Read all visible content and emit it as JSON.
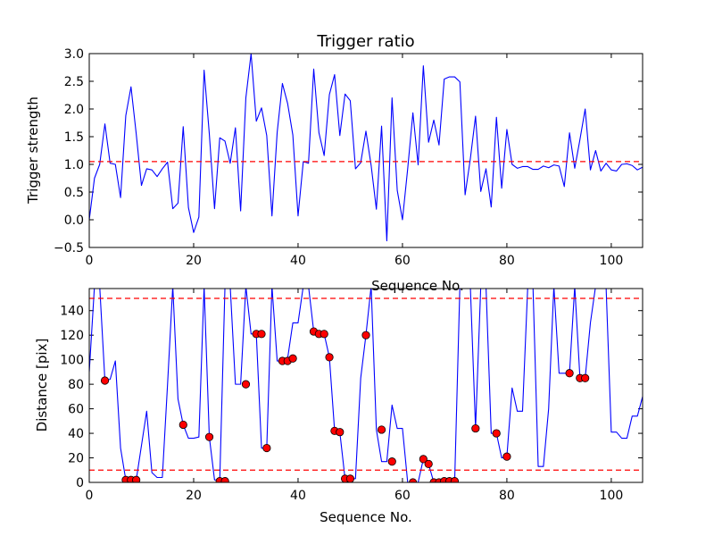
{
  "chart_data": [
    {
      "type": "line",
      "title": "Trigger ratio",
      "xlabel": "Sequence No.",
      "ylabel": "Trigger strength",
      "xlim": [
        0,
        106
      ],
      "ylim": [
        -0.5,
        3.0
      ],
      "xticks": [
        "0",
        "20",
        "40",
        "60",
        "80",
        "100"
      ],
      "yticks": [
        "−0.5",
        "0.0",
        "0.5",
        "1.0",
        "1.5",
        "2.0",
        "2.5",
        "3.0"
      ],
      "grid": false,
      "series": [
        {
          "color": "#0000ff",
          "x": [
            0,
            1,
            2,
            3,
            4,
            5,
            6,
            7,
            8,
            9,
            10,
            11,
            12,
            13,
            14,
            15,
            16,
            17,
            18,
            19,
            20,
            21,
            22,
            23,
            24,
            25,
            26,
            27,
            28,
            29,
            30,
            31,
            32,
            33,
            34,
            35,
            36,
            37,
            38,
            39,
            40,
            41,
            42,
            43,
            44,
            45,
            46,
            47,
            48,
            49,
            50,
            51,
            52,
            53,
            54,
            55,
            56,
            57,
            58,
            59,
            60,
            61,
            62,
            63,
            64,
            65,
            66,
            67,
            68,
            69,
            70,
            71,
            72,
            73,
            74,
            75,
            76,
            77,
            78,
            79,
            80,
            81,
            82,
            83,
            84,
            85,
            86,
            87,
            88,
            89,
            90,
            91,
            92,
            93,
            94,
            95,
            96,
            97,
            98,
            99,
            100,
            101,
            102,
            103,
            104,
            105,
            106
          ],
          "y": [
            0.0,
            0.75,
            1.0,
            1.73,
            1.02,
            1.0,
            0.4,
            1.88,
            2.4,
            1.55,
            0.62,
            0.92,
            0.9,
            0.78,
            0.92,
            1.04,
            0.2,
            0.3,
            1.68,
            0.22,
            -0.23,
            0.05,
            2.7,
            1.55,
            0.2,
            1.48,
            1.42,
            1.02,
            1.66,
            0.16,
            2.2,
            3.0,
            1.78,
            2.02,
            1.52,
            0.07,
            1.58,
            2.46,
            2.1,
            1.53,
            0.07,
            1.05,
            1.02,
            2.72,
            1.57,
            1.16,
            2.26,
            2.62,
            1.52,
            2.27,
            2.15,
            0.92,
            1.03,
            1.6,
            0.98,
            0.19,
            1.69,
            -0.38,
            2.2,
            0.53,
            0.0,
            0.92,
            1.93,
            0.99,
            2.78,
            1.4,
            1.8,
            1.35,
            2.54,
            2.58,
            2.58,
            2.49,
            0.45,
            1.1,
            1.87,
            0.51,
            0.92,
            0.23,
            1.85,
            0.57,
            1.63,
            1.0,
            0.93,
            0.96,
            0.96,
            0.91,
            0.91,
            0.97,
            0.94,
            0.99,
            0.97,
            0.6,
            1.57,
            0.93,
            1.45,
            2.0,
            0.9,
            1.25,
            0.88,
            1.02,
            0.9,
            0.88,
            1.0,
            1.01,
            0.98,
            0.9,
            0.95
          ]
        },
        {
          "color": "#ff0000",
          "style": "dashed",
          "x": [
            0,
            106
          ],
          "y": [
            1.05,
            1.05
          ]
        }
      ]
    },
    {
      "type": "line",
      "title": "",
      "xlabel": "Sequence No.",
      "ylabel": "Distance [pix]",
      "xlim": [
        0,
        106
      ],
      "ylim": [
        0,
        158
      ],
      "xticks": [
        "0",
        "20",
        "40",
        "60",
        "80",
        "100"
      ],
      "yticks": [
        "0",
        "20",
        "40",
        "60",
        "80",
        "100",
        "120",
        "140"
      ],
      "grid": false,
      "series": [
        {
          "color": "#0000ff",
          "x": [
            0,
            1,
            2,
            3,
            4,
            5,
            6,
            7,
            8,
            9,
            10,
            11,
            12,
            13,
            14,
            15,
            16,
            17,
            18,
            19,
            20,
            21,
            22,
            23,
            24,
            25,
            26,
            27,
            28,
            29,
            30,
            31,
            32,
            33,
            34,
            35,
            36,
            37,
            38,
            39,
            40,
            41,
            42,
            43,
            44,
            45,
            46,
            47,
            48,
            49,
            50,
            51,
            52,
            53,
            54,
            55,
            56,
            57,
            58,
            59,
            60,
            61,
            62,
            63,
            64,
            65,
            66,
            67,
            68,
            69,
            70,
            71,
            72,
            73,
            74,
            75,
            76,
            77,
            78,
            79,
            80,
            81,
            82,
            83,
            84,
            85,
            86,
            87,
            88,
            89,
            90,
            91,
            92,
            93,
            94,
            95,
            96,
            97,
            98,
            99,
            100,
            101,
            102,
            103,
            104,
            105,
            106
          ],
          "y": [
            90,
            160,
            160,
            83,
            84,
            99,
            28,
            2,
            2,
            2,
            30,
            58,
            8,
            4,
            4,
            80,
            160,
            68,
            47,
            36,
            36,
            37,
            160,
            37,
            2,
            2,
            160,
            160,
            80,
            80,
            160,
            121,
            121,
            28,
            28,
            160,
            99,
            99,
            101,
            130,
            130,
            160,
            160,
            123,
            121,
            121,
            102,
            42,
            41,
            3,
            3,
            3,
            85,
            120,
            160,
            43,
            17,
            17,
            63,
            44,
            44,
            0,
            0,
            0,
            19,
            15,
            0,
            0,
            1,
            1,
            1,
            160,
            160,
            160,
            44,
            160,
            160,
            40,
            40,
            20,
            21,
            77,
            58,
            58,
            160,
            160,
            13,
            13,
            60,
            160,
            89,
            89,
            89,
            160,
            85,
            85,
            130,
            160,
            160,
            160,
            41,
            41,
            36,
            36,
            54,
            54,
            70
          ]
        },
        {
          "color": "#ff0000",
          "style": "markers",
          "x": [
            3,
            7,
            8,
            9,
            18,
            23,
            25,
            26,
            30,
            32,
            33,
            34,
            37,
            38,
            39,
            43,
            44,
            45,
            46,
            47,
            48,
            49,
            50,
            53,
            56,
            58,
            62,
            64,
            65,
            66,
            67,
            68,
            69,
            70,
            74,
            78,
            80,
            92,
            94,
            95
          ],
          "y": [
            83,
            2,
            2,
            2,
            47,
            37,
            1,
            1,
            80,
            121,
            121,
            28,
            99,
            99,
            101,
            123,
            121,
            121,
            102,
            42,
            41,
            3,
            3,
            120,
            43,
            17,
            0,
            19,
            15,
            0,
            0,
            1,
            1,
            1,
            44,
            40,
            21,
            89,
            85,
            85
          ]
        },
        {
          "color": "#ff0000",
          "style": "dashed",
          "x": [
            0,
            106
          ],
          "y": [
            150,
            150
          ]
        },
        {
          "color": "#ff0000",
          "style": "dashed",
          "x": [
            0,
            106
          ],
          "y": [
            10,
            10
          ]
        }
      ]
    }
  ]
}
